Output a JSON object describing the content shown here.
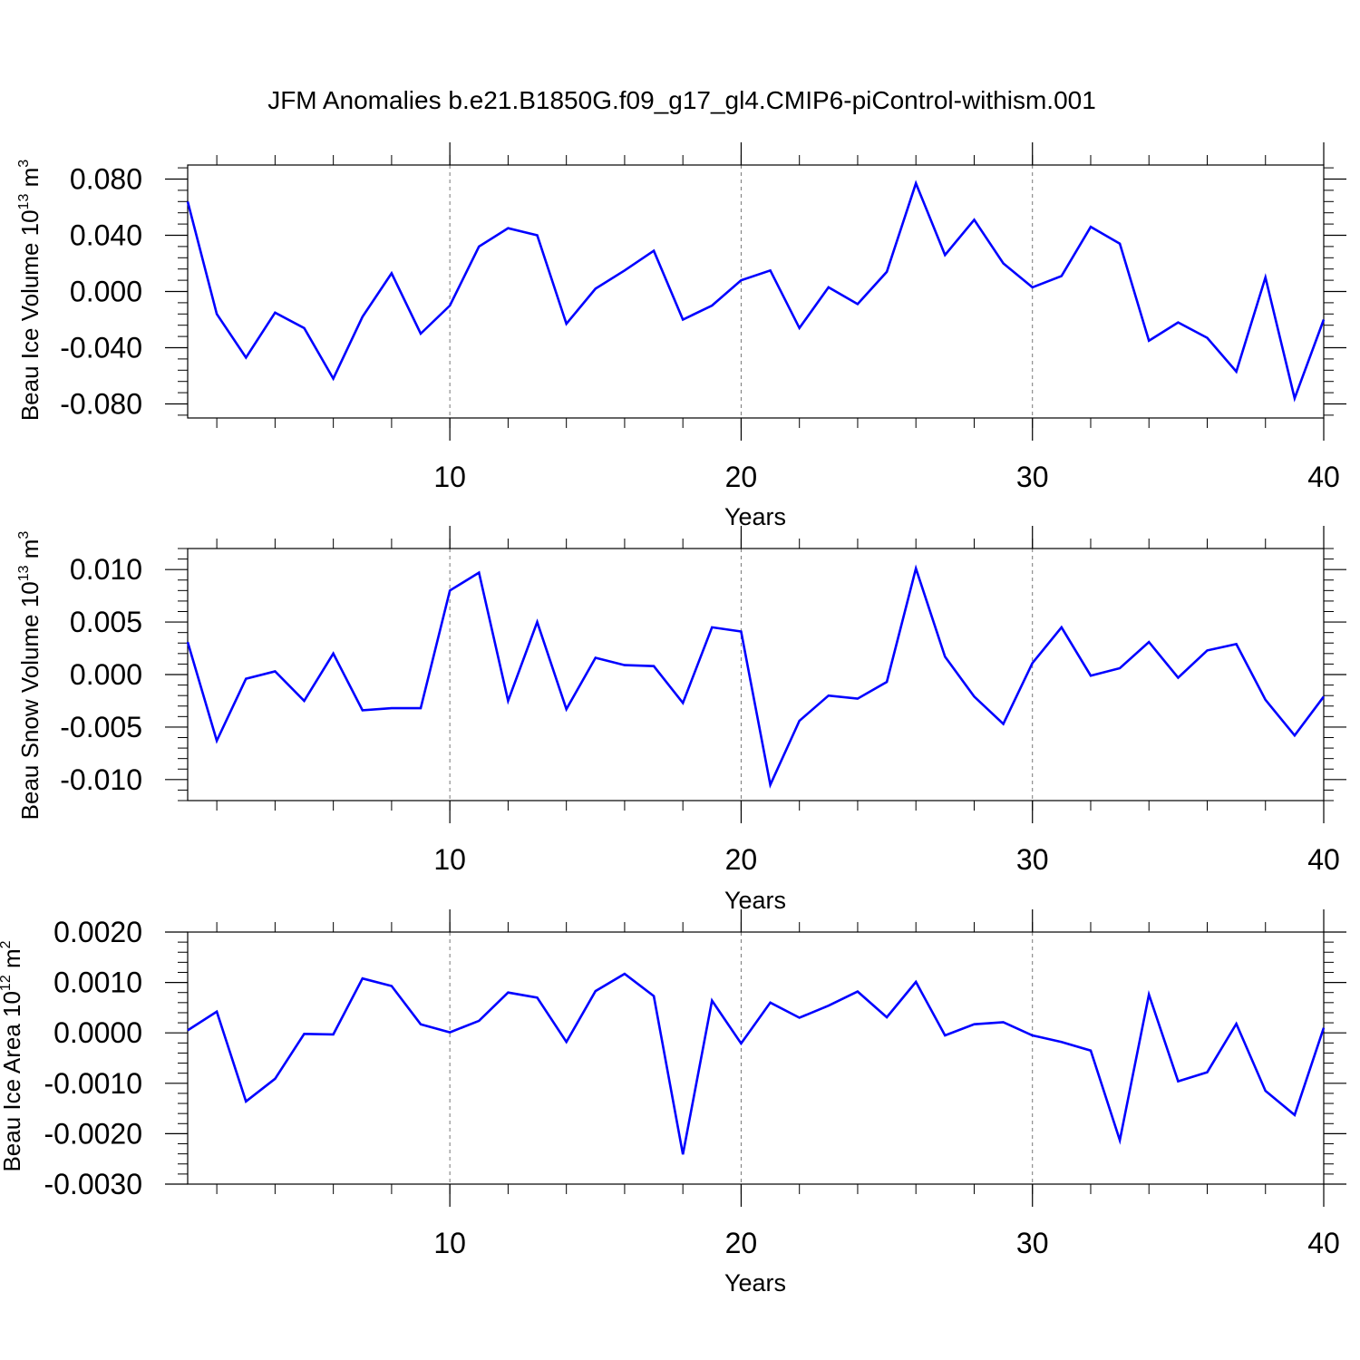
{
  "figure_title": "JFM Anomalies b.e21.B1850G.f09_g17_gl4.CMIP6-piControl-withism.001",
  "line_color": "#0000ff",
  "chart_data": [
    {
      "type": "line",
      "ylabel_main": "Beau Ice Volume 10",
      "ylabel_exp": "13",
      "ylabel_unit": " m",
      "ylabel_unit_exp": "3",
      "xlabel": "Years",
      "xlim": [
        1,
        40
      ],
      "ylim": [
        -0.09,
        0.09
      ],
      "yticks": [
        -0.08,
        -0.04,
        0.0,
        0.04,
        0.08
      ],
      "ytick_labels": [
        "-0.080",
        "-0.040",
        "0.000",
        "0.040",
        "0.080"
      ],
      "xticks": [
        10,
        20,
        30,
        40
      ],
      "xtick_labels": [
        "10",
        "20",
        "30",
        "40"
      ],
      "series": [
        {
          "name": "Beau Ice Volume",
          "x": [
            1,
            2,
            3,
            4,
            5,
            6,
            7,
            8,
            9,
            10,
            11,
            12,
            13,
            14,
            15,
            16,
            17,
            18,
            19,
            20,
            21,
            22,
            23,
            24,
            25,
            26,
            27,
            28,
            29,
            30,
            31,
            32,
            33,
            34,
            35,
            36,
            37,
            38,
            39,
            40
          ],
          "values": [
            0.064,
            -0.016,
            -0.047,
            -0.015,
            -0.026,
            -0.062,
            -0.018,
            0.013,
            -0.03,
            -0.01,
            0.032,
            0.045,
            0.04,
            -0.023,
            0.002,
            0.015,
            0.029,
            -0.02,
            -0.01,
            0.008,
            0.015,
            -0.026,
            0.003,
            -0.009,
            0.014,
            0.077,
            0.026,
            0.051,
            0.02,
            0.003,
            0.011,
            0.046,
            0.034,
            -0.035,
            -0.022,
            -0.033,
            -0.057,
            0.01,
            -0.076,
            -0.02
          ]
        }
      ]
    },
    {
      "type": "line",
      "ylabel_main": "Beau Snow Volume 10",
      "ylabel_exp": "13",
      "ylabel_unit": " m",
      "ylabel_unit_exp": "3",
      "xlabel": "Years",
      "xlim": [
        1,
        40
      ],
      "ylim": [
        -0.012,
        0.012
      ],
      "yticks": [
        -0.01,
        -0.005,
        0.0,
        0.005,
        0.01
      ],
      "ytick_labels": [
        "-0.010",
        "-0.005",
        "0.000",
        "0.005",
        "0.010"
      ],
      "xticks": [
        10,
        20,
        30,
        40
      ],
      "xtick_labels": [
        "10",
        "20",
        "30",
        "40"
      ],
      "series": [
        {
          "name": "Beau Snow Volume",
          "x": [
            1,
            2,
            3,
            4,
            5,
            6,
            7,
            8,
            9,
            10,
            11,
            12,
            13,
            14,
            15,
            16,
            17,
            18,
            19,
            20,
            21,
            22,
            23,
            24,
            25,
            26,
            27,
            28,
            29,
            30,
            31,
            32,
            33,
            34,
            35,
            36,
            37,
            38,
            39,
            40
          ],
          "values": [
            0.0031,
            -0.0063,
            -0.0004,
            0.0003,
            -0.0025,
            0.002,
            -0.0034,
            -0.0032,
            -0.0032,
            0.008,
            0.0097,
            -0.0025,
            0.005,
            -0.0033,
            0.0016,
            0.0009,
            0.0008,
            -0.0027,
            0.0045,
            0.0041,
            -0.0105,
            -0.0044,
            -0.002,
            -0.0023,
            -0.0007,
            0.0101,
            0.0017,
            -0.0021,
            -0.0047,
            0.0011,
            0.0045,
            -0.0001,
            0.0006,
            0.0031,
            -0.0003,
            0.0023,
            0.0029,
            -0.0024,
            -0.0058,
            -0.0021
          ]
        }
      ]
    },
    {
      "type": "line",
      "ylabel_main": "Beau Ice Area 10",
      "ylabel_exp": "12",
      "ylabel_unit": " m",
      "ylabel_unit_exp": "2",
      "xlabel": "Years",
      "xlim": [
        1,
        40
      ],
      "ylim": [
        -0.003,
        0.002
      ],
      "yticks": [
        -0.003,
        -0.002,
        -0.001,
        0.0,
        0.001,
        0.002
      ],
      "ytick_labels": [
        "-0.0030",
        "-0.0020",
        "-0.0010",
        "0.0000",
        "0.0010",
        "0.0020"
      ],
      "xticks": [
        10,
        20,
        30,
        40
      ],
      "xtick_labels": [
        "10",
        "20",
        "30",
        "40"
      ],
      "series": [
        {
          "name": "Beau Ice Area",
          "x": [
            1,
            2,
            3,
            4,
            5,
            6,
            7,
            8,
            9,
            10,
            11,
            12,
            13,
            14,
            15,
            16,
            17,
            18,
            19,
            20,
            21,
            22,
            23,
            24,
            25,
            26,
            27,
            28,
            29,
            30,
            31,
            32,
            33,
            34,
            35,
            36,
            37,
            38,
            39,
            40
          ],
          "values": [
            5e-05,
            0.00042,
            -0.00136,
            -0.00091,
            -2e-05,
            -3e-05,
            0.00108,
            0.00093,
            0.00017,
            1e-05,
            0.00024,
            0.0008,
            0.0007,
            -0.00018,
            0.00083,
            0.00117,
            0.00073,
            -0.00241,
            0.00064,
            -0.00021,
            0.0006,
            0.0003,
            0.00054,
            0.00082,
            0.00031,
            0.00101,
            -5e-05,
            0.00017,
            0.00021,
            -5e-05,
            -0.00018,
            -0.00035,
            -0.00213,
            0.00076,
            -0.00096,
            -0.00078,
            0.00018,
            -0.00115,
            -0.00163,
            0.0001
          ]
        }
      ]
    }
  ]
}
